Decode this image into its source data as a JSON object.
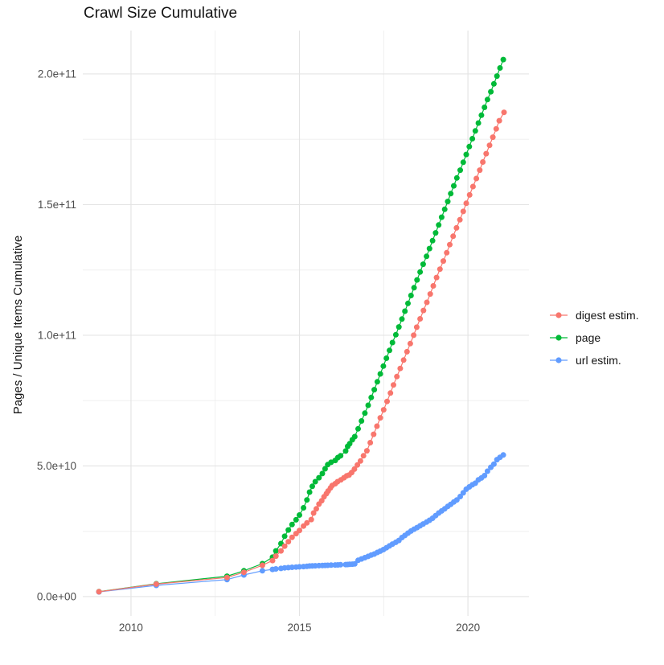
{
  "title": "Crawl Size Cumulative",
  "y_axis_title": "Pages / Unique Items Cumulative",
  "legend": [
    {
      "label": "digest estim.",
      "color": "#F8766D"
    },
    {
      "label": "page",
      "color": "#00BA38"
    },
    {
      "label": "url estim.",
      "color": "#619CFF"
    }
  ],
  "chart_data": {
    "type": "line",
    "title": "Crawl Size Cumulative",
    "xlabel": "",
    "ylabel": "Pages / Unique Items Cumulative",
    "legend_position": "right",
    "grid": true,
    "values_unit": "billions of pages (1e9)",
    "x_domain": [
      2008.57,
      2021.81
    ],
    "y_domain_e9": [
      -7.4,
      216.6
    ],
    "x_ticks": [
      {
        "value": 2010,
        "label": "2010"
      },
      {
        "value": 2015,
        "label": "2015"
      },
      {
        "value": 2020,
        "label": "2020"
      }
    ],
    "y_ticks": [
      {
        "value_e9": 0,
        "label": "0.0e+00"
      },
      {
        "value_e9": 50,
        "label": "5.0e+10"
      },
      {
        "value_e9": 100,
        "label": "1.0e+11"
      },
      {
        "value_e9": 150,
        "label": "1.5e+11"
      },
      {
        "value_e9": 200,
        "label": "2.0e+11"
      }
    ],
    "x_minor_ticks": [
      2012.5,
      2017.5
    ],
    "y_minor_ticks_e9": [
      25,
      75,
      125,
      175
    ],
    "draw_order": [
      "page",
      "url estim.",
      "digest estim."
    ],
    "series": [
      {
        "name": "page",
        "color": "#00BA38",
        "points": [
          [
            2009.05,
            1.9
          ],
          [
            2010.75,
            4.9
          ],
          [
            2012.85,
            7.8
          ],
          [
            2013.35,
            9.9
          ],
          [
            2013.9,
            12.6
          ],
          [
            2014.2,
            15.1
          ],
          [
            2014.3,
            17.5
          ],
          [
            2014.45,
            20.3
          ],
          [
            2014.56,
            23.1
          ],
          [
            2014.67,
            25.5
          ],
          [
            2014.78,
            27.6
          ],
          [
            2014.9,
            29.4
          ],
          [
            2015.0,
            31.2
          ],
          [
            2015.12,
            34.0
          ],
          [
            2015.22,
            37.0
          ],
          [
            2015.3,
            40.0
          ],
          [
            2015.38,
            42.2
          ],
          [
            2015.47,
            44.0
          ],
          [
            2015.58,
            45.5
          ],
          [
            2015.68,
            47.1
          ],
          [
            2015.76,
            48.9
          ],
          [
            2015.84,
            50.5
          ],
          [
            2015.94,
            51.4
          ],
          [
            2016.06,
            52.1
          ],
          [
            2016.14,
            53.2
          ],
          [
            2016.22,
            53.9
          ],
          [
            2016.37,
            55.7
          ],
          [
            2016.43,
            57.5
          ],
          [
            2016.49,
            58.5
          ],
          [
            2016.57,
            60.0
          ],
          [
            2016.64,
            61.2
          ],
          [
            2016.74,
            64.2
          ],
          [
            2016.84,
            67.2
          ],
          [
            2016.94,
            70.2
          ],
          [
            2017.04,
            73.2
          ],
          [
            2017.13,
            76.2
          ],
          [
            2017.22,
            79.2
          ],
          [
            2017.31,
            82.2
          ],
          [
            2017.4,
            85.2
          ],
          [
            2017.49,
            88.2
          ],
          [
            2017.58,
            91.2
          ],
          [
            2017.67,
            94.2
          ],
          [
            2017.76,
            97.2
          ],
          [
            2017.86,
            100.2
          ],
          [
            2017.95,
            103.2
          ],
          [
            2018.04,
            106.2
          ],
          [
            2018.13,
            109.2
          ],
          [
            2018.22,
            112.2
          ],
          [
            2018.31,
            115.2
          ],
          [
            2018.4,
            118.2
          ],
          [
            2018.49,
            121.2
          ],
          [
            2018.58,
            124.2
          ],
          [
            2018.67,
            127.2
          ],
          [
            2018.77,
            130.2
          ],
          [
            2018.86,
            133.2
          ],
          [
            2018.95,
            136.2
          ],
          [
            2019.04,
            139.2
          ],
          [
            2019.13,
            142.2
          ],
          [
            2019.22,
            145.2
          ],
          [
            2019.31,
            148.2
          ],
          [
            2019.4,
            151.2
          ],
          [
            2019.49,
            154.2
          ],
          [
            2019.58,
            157.2
          ],
          [
            2019.67,
            160.2
          ],
          [
            2019.77,
            163.2
          ],
          [
            2019.86,
            166.2
          ],
          [
            2019.95,
            169.2
          ],
          [
            2020.04,
            172.2
          ],
          [
            2020.13,
            175.2
          ],
          [
            2020.22,
            178.2
          ],
          [
            2020.31,
            181.2
          ],
          [
            2020.4,
            184.2
          ],
          [
            2020.49,
            187.2
          ],
          [
            2020.58,
            190.2
          ],
          [
            2020.68,
            193.2
          ],
          [
            2020.77,
            196.2
          ],
          [
            2020.86,
            199.2
          ],
          [
            2020.95,
            202.3
          ],
          [
            2021.05,
            205.5
          ]
        ]
      },
      {
        "name": "url estim.",
        "color": "#619CFF",
        "points": [
          [
            2009.05,
            1.8
          ],
          [
            2010.75,
            4.3
          ],
          [
            2012.85,
            6.5
          ],
          [
            2013.35,
            8.3
          ],
          [
            2013.9,
            9.9
          ],
          [
            2014.2,
            10.4
          ],
          [
            2014.3,
            10.6
          ],
          [
            2014.45,
            10.8
          ],
          [
            2014.56,
            11.0
          ],
          [
            2014.67,
            11.1
          ],
          [
            2014.78,
            11.2
          ],
          [
            2014.9,
            11.3
          ],
          [
            2015.0,
            11.4
          ],
          [
            2015.12,
            11.5
          ],
          [
            2015.22,
            11.6
          ],
          [
            2015.3,
            11.7
          ],
          [
            2015.38,
            11.75
          ],
          [
            2015.47,
            11.8
          ],
          [
            2015.58,
            11.85
          ],
          [
            2015.68,
            11.9
          ],
          [
            2015.76,
            11.95
          ],
          [
            2015.84,
            12.0
          ],
          [
            2015.94,
            12.05
          ],
          [
            2016.06,
            12.1
          ],
          [
            2016.14,
            12.15
          ],
          [
            2016.22,
            12.2
          ],
          [
            2016.37,
            12.25
          ],
          [
            2016.43,
            12.3
          ],
          [
            2016.49,
            12.35
          ],
          [
            2016.57,
            12.4
          ],
          [
            2016.64,
            12.5
          ],
          [
            2016.74,
            13.9
          ],
          [
            2016.84,
            14.4
          ],
          [
            2016.94,
            14.9
          ],
          [
            2017.04,
            15.4
          ],
          [
            2017.13,
            15.9
          ],
          [
            2017.22,
            16.3
          ],
          [
            2017.31,
            16.9
          ],
          [
            2017.4,
            17.4
          ],
          [
            2017.49,
            18.0
          ],
          [
            2017.58,
            18.7
          ],
          [
            2017.67,
            19.4
          ],
          [
            2017.76,
            20.1
          ],
          [
            2017.86,
            20.8
          ],
          [
            2017.95,
            21.5
          ],
          [
            2018.04,
            22.6
          ],
          [
            2018.13,
            23.4
          ],
          [
            2018.22,
            24.3
          ],
          [
            2018.31,
            25.1
          ],
          [
            2018.4,
            25.8
          ],
          [
            2018.49,
            26.4
          ],
          [
            2018.58,
            27.1
          ],
          [
            2018.67,
            27.8
          ],
          [
            2018.77,
            28.5
          ],
          [
            2018.86,
            29.2
          ],
          [
            2018.95,
            30.0
          ],
          [
            2019.04,
            31.0
          ],
          [
            2019.13,
            32.0
          ],
          [
            2019.22,
            32.8
          ],
          [
            2019.31,
            33.6
          ],
          [
            2019.4,
            34.5
          ],
          [
            2019.49,
            35.3
          ],
          [
            2019.58,
            36.2
          ],
          [
            2019.67,
            37.0
          ],
          [
            2019.77,
            38.3
          ],
          [
            2019.86,
            39.7
          ],
          [
            2019.95,
            41.1
          ],
          [
            2020.04,
            42.0
          ],
          [
            2020.13,
            42.8
          ],
          [
            2020.22,
            43.4
          ],
          [
            2020.31,
            44.7
          ],
          [
            2020.4,
            45.4
          ],
          [
            2020.49,
            46.3
          ],
          [
            2020.58,
            48.0
          ],
          [
            2020.68,
            49.5
          ],
          [
            2020.77,
            50.7
          ],
          [
            2020.86,
            52.4
          ],
          [
            2020.95,
            53.3
          ],
          [
            2021.05,
            54.2
          ]
        ]
      },
      {
        "name": "digest estim.",
        "color": "#F8766D",
        "points": [
          [
            2009.05,
            1.85
          ],
          [
            2010.75,
            4.8
          ],
          [
            2012.85,
            7.3
          ],
          [
            2013.35,
            9.3
          ],
          [
            2013.9,
            12.0
          ],
          [
            2014.2,
            13.8
          ],
          [
            2014.3,
            15.5
          ],
          [
            2014.45,
            17.5
          ],
          [
            2014.56,
            19.3
          ],
          [
            2014.67,
            21.0
          ],
          [
            2014.78,
            22.7
          ],
          [
            2014.9,
            24.1
          ],
          [
            2015.0,
            25.3
          ],
          [
            2015.12,
            27.0
          ],
          [
            2015.22,
            28.2
          ],
          [
            2015.35,
            29.5
          ],
          [
            2015.42,
            32.0
          ],
          [
            2015.5,
            33.6
          ],
          [
            2015.58,
            35.4
          ],
          [
            2015.66,
            36.7
          ],
          [
            2015.73,
            38.2
          ],
          [
            2015.8,
            39.4
          ],
          [
            2015.85,
            40.4
          ],
          [
            2015.92,
            41.6
          ],
          [
            2015.97,
            42.5
          ],
          [
            2016.06,
            43.2
          ],
          [
            2016.13,
            44.0
          ],
          [
            2016.23,
            44.7
          ],
          [
            2016.32,
            45.5
          ],
          [
            2016.4,
            46.2
          ],
          [
            2016.47,
            46.5
          ],
          [
            2016.55,
            47.5
          ],
          [
            2016.63,
            48.8
          ],
          [
            2016.72,
            50.4
          ],
          [
            2016.81,
            51.9
          ],
          [
            2016.9,
            53.9
          ],
          [
            2017.0,
            55.8
          ],
          [
            2017.1,
            58.9
          ],
          [
            2017.2,
            62.1
          ],
          [
            2017.3,
            65.2
          ],
          [
            2017.4,
            68.4
          ],
          [
            2017.5,
            71.5
          ],
          [
            2017.6,
            74.7
          ],
          [
            2017.7,
            77.9
          ],
          [
            2017.79,
            81.0
          ],
          [
            2017.89,
            84.2
          ],
          [
            2017.99,
            87.3
          ],
          [
            2018.09,
            90.5
          ],
          [
            2018.19,
            93.7
          ],
          [
            2018.29,
            96.8
          ],
          [
            2018.39,
            100.0
          ],
          [
            2018.48,
            103.1
          ],
          [
            2018.58,
            106.3
          ],
          [
            2018.68,
            109.5
          ],
          [
            2018.78,
            112.6
          ],
          [
            2018.88,
            115.8
          ],
          [
            2018.97,
            118.9
          ],
          [
            2019.07,
            122.1
          ],
          [
            2019.17,
            125.3
          ],
          [
            2019.27,
            128.4
          ],
          [
            2019.37,
            131.6
          ],
          [
            2019.46,
            134.7
          ],
          [
            2019.56,
            137.9
          ],
          [
            2019.66,
            141.1
          ],
          [
            2019.76,
            144.2
          ],
          [
            2019.86,
            147.4
          ],
          [
            2019.95,
            150.5
          ],
          [
            2020.05,
            153.7
          ],
          [
            2020.15,
            156.9
          ],
          [
            2020.25,
            160.0
          ],
          [
            2020.35,
            163.2
          ],
          [
            2020.44,
            166.3
          ],
          [
            2020.54,
            169.5
          ],
          [
            2020.64,
            172.7
          ],
          [
            2020.74,
            175.8
          ],
          [
            2020.84,
            179.0
          ],
          [
            2020.93,
            182.1
          ],
          [
            2021.07,
            185.3
          ]
        ]
      }
    ]
  },
  "style": {
    "major_grid_color": "#E4E4E4",
    "minor_grid_color": "#F0F0F0",
    "tick_label_color": "#4d4d4d",
    "text_color": "#141414",
    "background": "#ffffff"
  }
}
